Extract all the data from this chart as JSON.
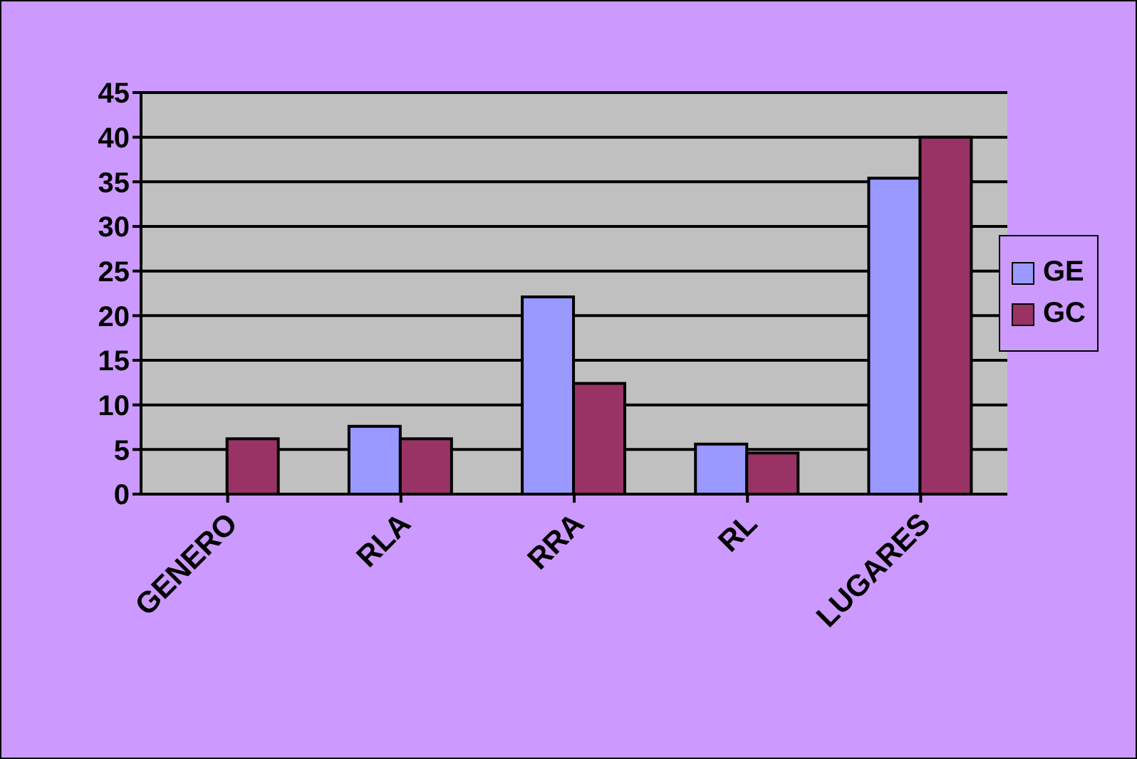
{
  "chart_data": {
    "type": "bar",
    "categories": [
      "GENERO",
      "RLA",
      "RRA",
      "RL",
      "LUGARES"
    ],
    "series": [
      {
        "name": "GE",
        "color": "#9999ff",
        "values": [
          0,
          7.6,
          22.1,
          5.6,
          35.4
        ]
      },
      {
        "name": "GC",
        "color": "#993366",
        "values": [
          6.2,
          6.2,
          12.4,
          4.6,
          40
        ]
      }
    ],
    "ylim": [
      0,
      45
    ],
    "yticks": [
      0,
      5,
      10,
      15,
      20,
      25,
      30,
      35,
      40,
      45
    ],
    "grid": "y",
    "legend": "right"
  }
}
